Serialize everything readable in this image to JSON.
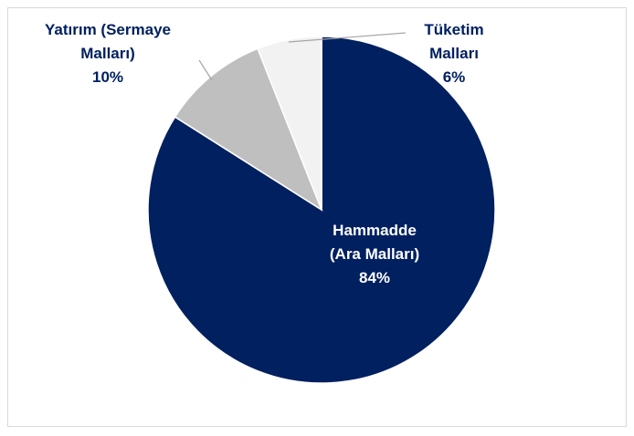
{
  "chart_data": {
    "type": "pie",
    "categories": [
      "Hammadde (Ara Malları)",
      "Yatırım (Sermaye Malları)",
      "Tüketim Malları"
    ],
    "values": [
      84,
      10,
      6
    ],
    "value_labels": [
      "84%",
      "10%",
      "6%"
    ],
    "colors": [
      "#002060",
      "#bfbfbf",
      "#f2f2f2"
    ]
  }
}
